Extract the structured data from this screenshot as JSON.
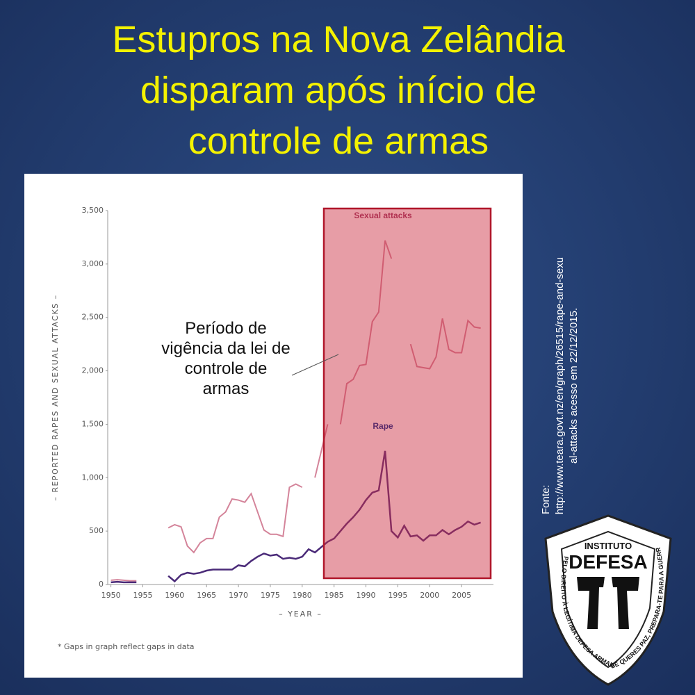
{
  "chart_data": {
    "type": "line",
    "title": [
      "Estupros na Nova Zelândia",
      "disparam após início de",
      "controle de armas"
    ],
    "annotation": [
      "Período de",
      "vigência da lei de",
      "controle de",
      "armas"
    ],
    "x_label": "– YEAR –",
    "y_label": "– REPORTED RAPES AND SEXUAL ATTACKS –",
    "footnote": "* Gaps in graph reflect gaps in data",
    "source": [
      "Fonte:",
      "http://www.teara.govt.nz/en/graph/26515/rape-and-sexu",
      "al-attacks acesso em  22/12/2015."
    ],
    "logo": {
      "top": "INSTITUTO",
      "name": "DEFESA",
      "left": "PELO DIREITO À LEGÍTIMA DEFESA ARMADA",
      "right": "SE QUERES PAZ, PREPARA-TE PARA A GUERRA"
    },
    "x": [
      1950,
      1951,
      1952,
      1953,
      1954,
      1955,
      1956,
      1957,
      1958,
      1959,
      1960,
      1961,
      1962,
      1963,
      1964,
      1965,
      1966,
      1967,
      1968,
      1969,
      1970,
      1971,
      1972,
      1973,
      1974,
      1975,
      1976,
      1977,
      1978,
      1979,
      1980,
      1981,
      1982,
      1983,
      1984,
      1985,
      1986,
      1987,
      1988,
      1989,
      1990,
      1991,
      1992,
      1993,
      1994,
      1995,
      1996,
      1997,
      1998,
      1999,
      2000,
      2001,
      2002,
      2003,
      2004,
      2005,
      2006,
      2007,
      2008
    ],
    "series": [
      {
        "name": "Sexual attacks",
        "color": "#d4849a",
        "values": [
          40,
          45,
          40,
          35,
          35,
          null,
          null,
          null,
          null,
          530,
          560,
          540,
          360,
          300,
          390,
          430,
          430,
          630,
          680,
          800,
          790,
          770,
          850,
          680,
          510,
          470,
          470,
          450,
          910,
          940,
          910,
          null,
          1000,
          1250,
          1500,
          null,
          1500,
          1880,
          1920,
          2050,
          2060,
          2460,
          2550,
          3220,
          3050,
          null,
          null,
          2250,
          2040,
          2030,
          2020,
          2130,
          2490,
          2200,
          2170,
          2170,
          2470,
          2410,
          2400
        ]
      },
      {
        "name": "Rape",
        "color": "#4a2a78",
        "values": [
          20,
          25,
          20,
          20,
          20,
          null,
          null,
          null,
          null,
          80,
          30,
          90,
          110,
          100,
          110,
          130,
          140,
          140,
          140,
          140,
          180,
          170,
          220,
          260,
          290,
          270,
          280,
          240,
          250,
          240,
          260,
          330,
          300,
          350,
          400,
          430,
          500,
          570,
          630,
          700,
          790,
          860,
          880,
          1250,
          500,
          440,
          550,
          450,
          460,
          410,
          460,
          460,
          510,
          470,
          510,
          540,
          590,
          560,
          580
        ]
      }
    ],
    "xlim": [
      1949.5,
      2010
    ],
    "ylim": [
      0,
      3500
    ],
    "xticks": [
      1950,
      1955,
      1960,
      1965,
      1970,
      1975,
      1980,
      1985,
      1990,
      1995,
      2000,
      2005
    ],
    "yticks": [
      0,
      500,
      {
        "value": 1000,
        "label": "1,000"
      },
      {
        "value": 1500,
        "label": "1,500"
      },
      {
        "value": 2000,
        "label": "2,000"
      },
      {
        "value": 2500,
        "label": "2,500"
      },
      {
        "value": 3000,
        "label": "3,000"
      },
      {
        "value": 3500,
        "label": "3,500"
      }
    ]
  }
}
